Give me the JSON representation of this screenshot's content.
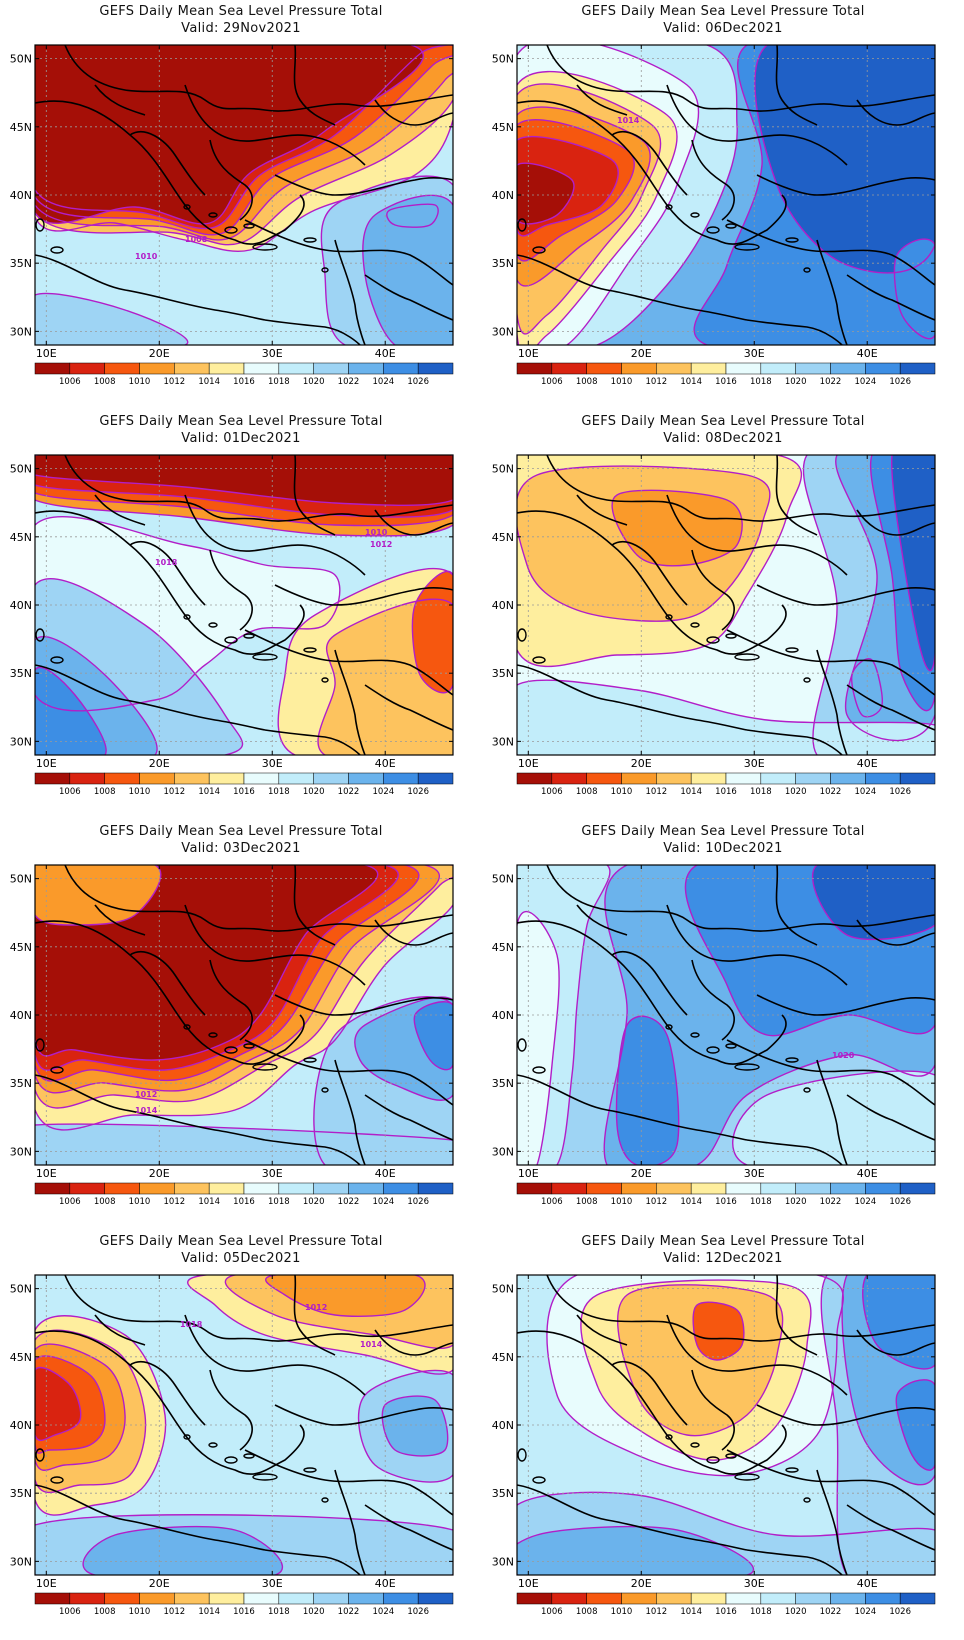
{
  "figure": {
    "panel_title": "GEFS Daily Mean Sea Level Pressure Total",
    "valid_prefix": "Valid:",
    "x_ticks": [
      "10E",
      "20E",
      "30E",
      "40E"
    ],
    "y_ticks": [
      "50N",
      "45N",
      "40N",
      "35N",
      "30N"
    ],
    "colorbar_levels": [
      "1006",
      "1008",
      "1010",
      "1012",
      "1014",
      "1016",
      "1018",
      "1020",
      "1022",
      "1024",
      "1026"
    ],
    "colorbar_colors": [
      "#a50f07",
      "#d92310",
      "#f6570f",
      "#fa9a2a",
      "#fdc35e",
      "#feee9e",
      "#e8fcfd",
      "#c2edfa",
      "#9ed4f4",
      "#6bb3ec",
      "#3d8ee4",
      "#1f60c6"
    ],
    "contour_color": "#b21ec8",
    "boundary_color": "#000000"
  },
  "panels": [
    {
      "valid": "Valid: 29Nov2021",
      "labels": [
        "1008",
        "1010"
      ]
    },
    {
      "valid": "Valid: 06Dec2021",
      "labels": [
        "1014"
      ]
    },
    {
      "valid": "Valid: 01Dec2021",
      "labels": [
        "1018",
        "1010",
        "1012"
      ]
    },
    {
      "valid": "Valid: 08Dec2021",
      "labels": []
    },
    {
      "valid": "Valid: 03Dec2021",
      "labels": [
        "1012",
        "1014"
      ]
    },
    {
      "valid": "Valid: 10Dec2021",
      "labels": [
        "1020"
      ]
    },
    {
      "valid": "Valid: 05Dec2021",
      "labels": [
        "1018",
        "1012",
        "1014"
      ]
    },
    {
      "valid": "Valid: 12Dec2021",
      "labels": []
    }
  ]
}
